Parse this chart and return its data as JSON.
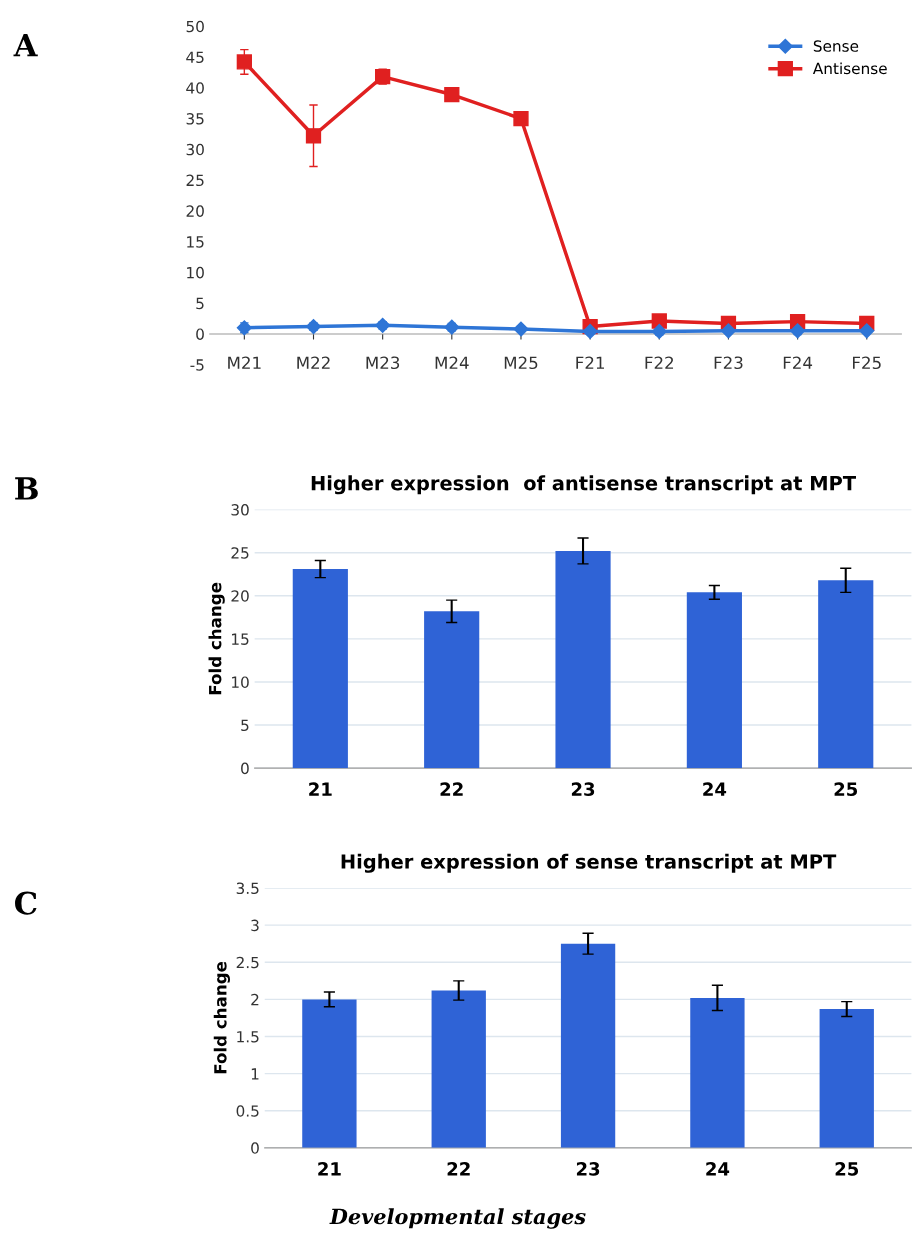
{
  "chart_data": [
    {
      "type": "line",
      "categories": [
        "M21",
        "M22",
        "M23",
        "M24",
        "M25",
        "F21",
        "F22",
        "F23",
        "F24",
        "F25"
      ],
      "ylim": [
        -5,
        50
      ],
      "yticks": [
        -5,
        0,
        5,
        10,
        15,
        20,
        25,
        30,
        35,
        40,
        45,
        50
      ],
      "legend": "top right",
      "grid": false,
      "annotations": [
        "A"
      ],
      "series": [
        {
          "name": "Sense",
          "color": "#2e75d6",
          "marker": "diamond",
          "values": [
            1.0,
            1.2,
            1.4,
            1.1,
            0.8,
            0.4,
            0.4,
            0.5,
            0.5,
            0.5
          ],
          "errors": [
            0.8,
            0.6,
            0.6,
            0.6,
            0.4,
            null,
            0.6,
            0.4,
            0.6,
            null
          ]
        },
        {
          "name": "Antisense",
          "color": "#e02020",
          "marker": "square",
          "values": [
            44.2,
            32.2,
            41.8,
            38.9,
            35.0,
            1.2,
            2.1,
            1.7,
            2.0,
            1.7
          ],
          "errors": [
            2.0,
            5.0,
            1.2,
            null,
            null,
            null,
            null,
            null,
            null,
            null
          ]
        }
      ]
    },
    {
      "type": "bar",
      "title": "Higher expression  of antisense transcript at MPT",
      "ylabel": "Fold change",
      "categories": [
        "21",
        "22",
        "23",
        "24",
        "25"
      ],
      "ylim": [
        0,
        30
      ],
      "yticks": [
        0,
        5,
        10,
        15,
        20,
        25,
        30
      ],
      "grid": "y",
      "annotations": [
        "B"
      ],
      "series": [
        {
          "color": "#2f63d6",
          "values": [
            23.1,
            18.2,
            25.2,
            20.4,
            21.8
          ],
          "errors": [
            1.0,
            1.3,
            1.5,
            0.8,
            1.4
          ]
        }
      ]
    },
    {
      "type": "bar",
      "title": "Higher expression of sense transcript at MPT",
      "ylabel": "Fold change",
      "categories": [
        "21",
        "22",
        "23",
        "24",
        "25"
      ],
      "ylim": [
        0,
        3.5
      ],
      "yticks": [
        0,
        0.5,
        1,
        1.5,
        2,
        2.5,
        3,
        3.5
      ],
      "grid": "y",
      "annotations": [
        "C",
        "Developmental stages"
      ],
      "series": [
        {
          "color": "#2f63d6",
          "values": [
            2.0,
            2.12,
            2.75,
            2.02,
            1.87
          ],
          "errors": [
            0.1,
            0.13,
            0.14,
            0.17,
            0.1
          ]
        }
      ]
    }
  ]
}
